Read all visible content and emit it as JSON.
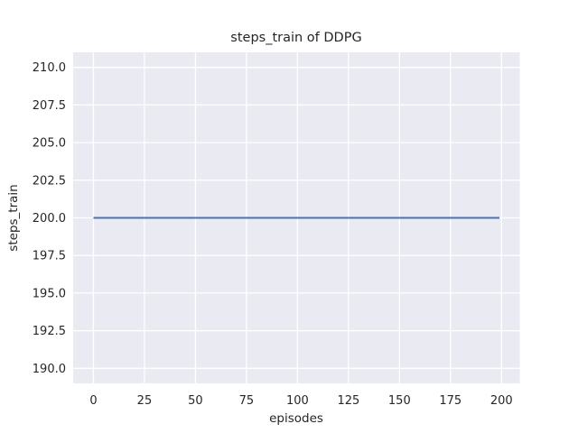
{
  "chart_data": {
    "type": "line",
    "title": "steps_train of DDPG",
    "xlabel": "episodes",
    "ylabel": "steps_train",
    "xlim": [
      -9.95,
      208.95
    ],
    "ylim": [
      189,
      211
    ],
    "xticks": [
      {
        "v": 0,
        "label": "0"
      },
      {
        "v": 25,
        "label": "25"
      },
      {
        "v": 50,
        "label": "50"
      },
      {
        "v": 75,
        "label": "75"
      },
      {
        "v": 100,
        "label": "100"
      },
      {
        "v": 125,
        "label": "125"
      },
      {
        "v": 150,
        "label": "150"
      },
      {
        "v": 175,
        "label": "175"
      },
      {
        "v": 200,
        "label": "200"
      }
    ],
    "yticks": [
      {
        "v": 190.0,
        "label": "190.0"
      },
      {
        "v": 192.5,
        "label": "192.5"
      },
      {
        "v": 195.0,
        "label": "195.0"
      },
      {
        "v": 197.5,
        "label": "197.5"
      },
      {
        "v": 200.0,
        "label": "200.0"
      },
      {
        "v": 202.5,
        "label": "202.5"
      },
      {
        "v": 205.0,
        "label": "205.0"
      },
      {
        "v": 207.5,
        "label": "207.5"
      },
      {
        "v": 210.0,
        "label": "210.0"
      }
    ],
    "grid": true,
    "legend_position": "none",
    "plot_bg": "#EAEAF2",
    "grid_color": "#FFFFFF",
    "text_color": "#262626",
    "series": [
      {
        "name": "steps_train",
        "color": "#4C72B0",
        "points": [
          [
            0,
            200
          ],
          [
            199,
            200
          ]
        ]
      }
    ]
  }
}
